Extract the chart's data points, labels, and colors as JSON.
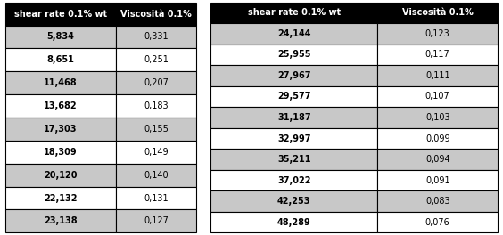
{
  "table1_headers": [
    "shear rate 0.1% wt",
    "Viscosità 0.1%"
  ],
  "table1_rows": [
    [
      "5,834",
      "0,331"
    ],
    [
      "8,651",
      "0,251"
    ],
    [
      "11,468",
      "0,207"
    ],
    [
      "13,682",
      "0,183"
    ],
    [
      "17,303",
      "0,155"
    ],
    [
      "18,309",
      "0,149"
    ],
    [
      "20,120",
      "0,140"
    ],
    [
      "22,132",
      "0,131"
    ],
    [
      "23,138",
      "0,127"
    ]
  ],
  "table2_headers": [
    "shear rate 0.1% wt",
    "Viscosità 0.1%"
  ],
  "table2_rows": [
    [
      "24,144",
      "0,123"
    ],
    [
      "25,955",
      "0,117"
    ],
    [
      "27,967",
      "0,111"
    ],
    [
      "29,577",
      "0,107"
    ],
    [
      "31,187",
      "0,103"
    ],
    [
      "32,997",
      "0,099"
    ],
    [
      "35,211",
      "0,094"
    ],
    [
      "37,022",
      "0,091"
    ],
    [
      "42,253",
      "0,083"
    ],
    [
      "48,289",
      "0,076"
    ]
  ],
  "header_bg": "#000000",
  "header_fg": "#ffffff",
  "row_bg_odd": "#c8c8c8",
  "row_bg_even": "#ffffff",
  "border_color": "#000000",
  "header_fontsize": 7.0,
  "cell_fontsize": 7.0
}
